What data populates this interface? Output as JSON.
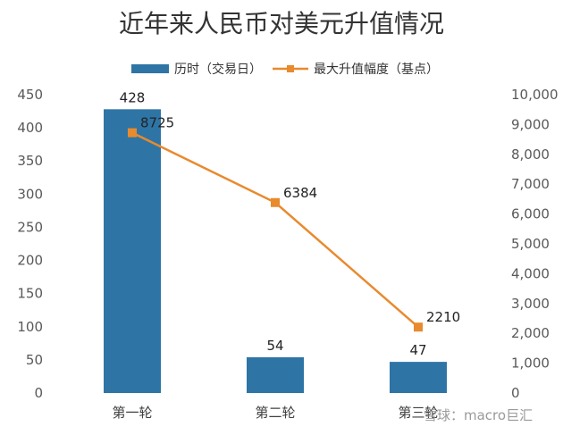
{
  "chart_data": {
    "type": "bar",
    "title": "近年来人民币对美元升值情况",
    "categories": [
      "第一轮",
      "第二轮",
      "第三轮"
    ],
    "series": [
      {
        "name": "历时（交易日）",
        "type": "bar",
        "axis": "left",
        "values": [
          428,
          54,
          47
        ],
        "color": "#2E75A6"
      },
      {
        "name": "最大升值幅度（基点）",
        "type": "line",
        "axis": "right",
        "values": [
          8725,
          6384,
          2210
        ],
        "color": "#E88A2E"
      }
    ],
    "y_left": {
      "min": 0,
      "max": 450,
      "ticks": [
        "0",
        "50",
        "100",
        "150",
        "200",
        "250",
        "300",
        "350",
        "400",
        "450"
      ]
    },
    "y_right": {
      "min": 0,
      "max": 10000,
      "ticks": [
        "0",
        "1,000",
        "2,000",
        "3,000",
        "4,000",
        "5,000",
        "6,000",
        "7,000",
        "8,000",
        "9,000",
        "10,000"
      ]
    },
    "grid": false,
    "legend": "top"
  },
  "watermark": "雪球：macro巨汇"
}
